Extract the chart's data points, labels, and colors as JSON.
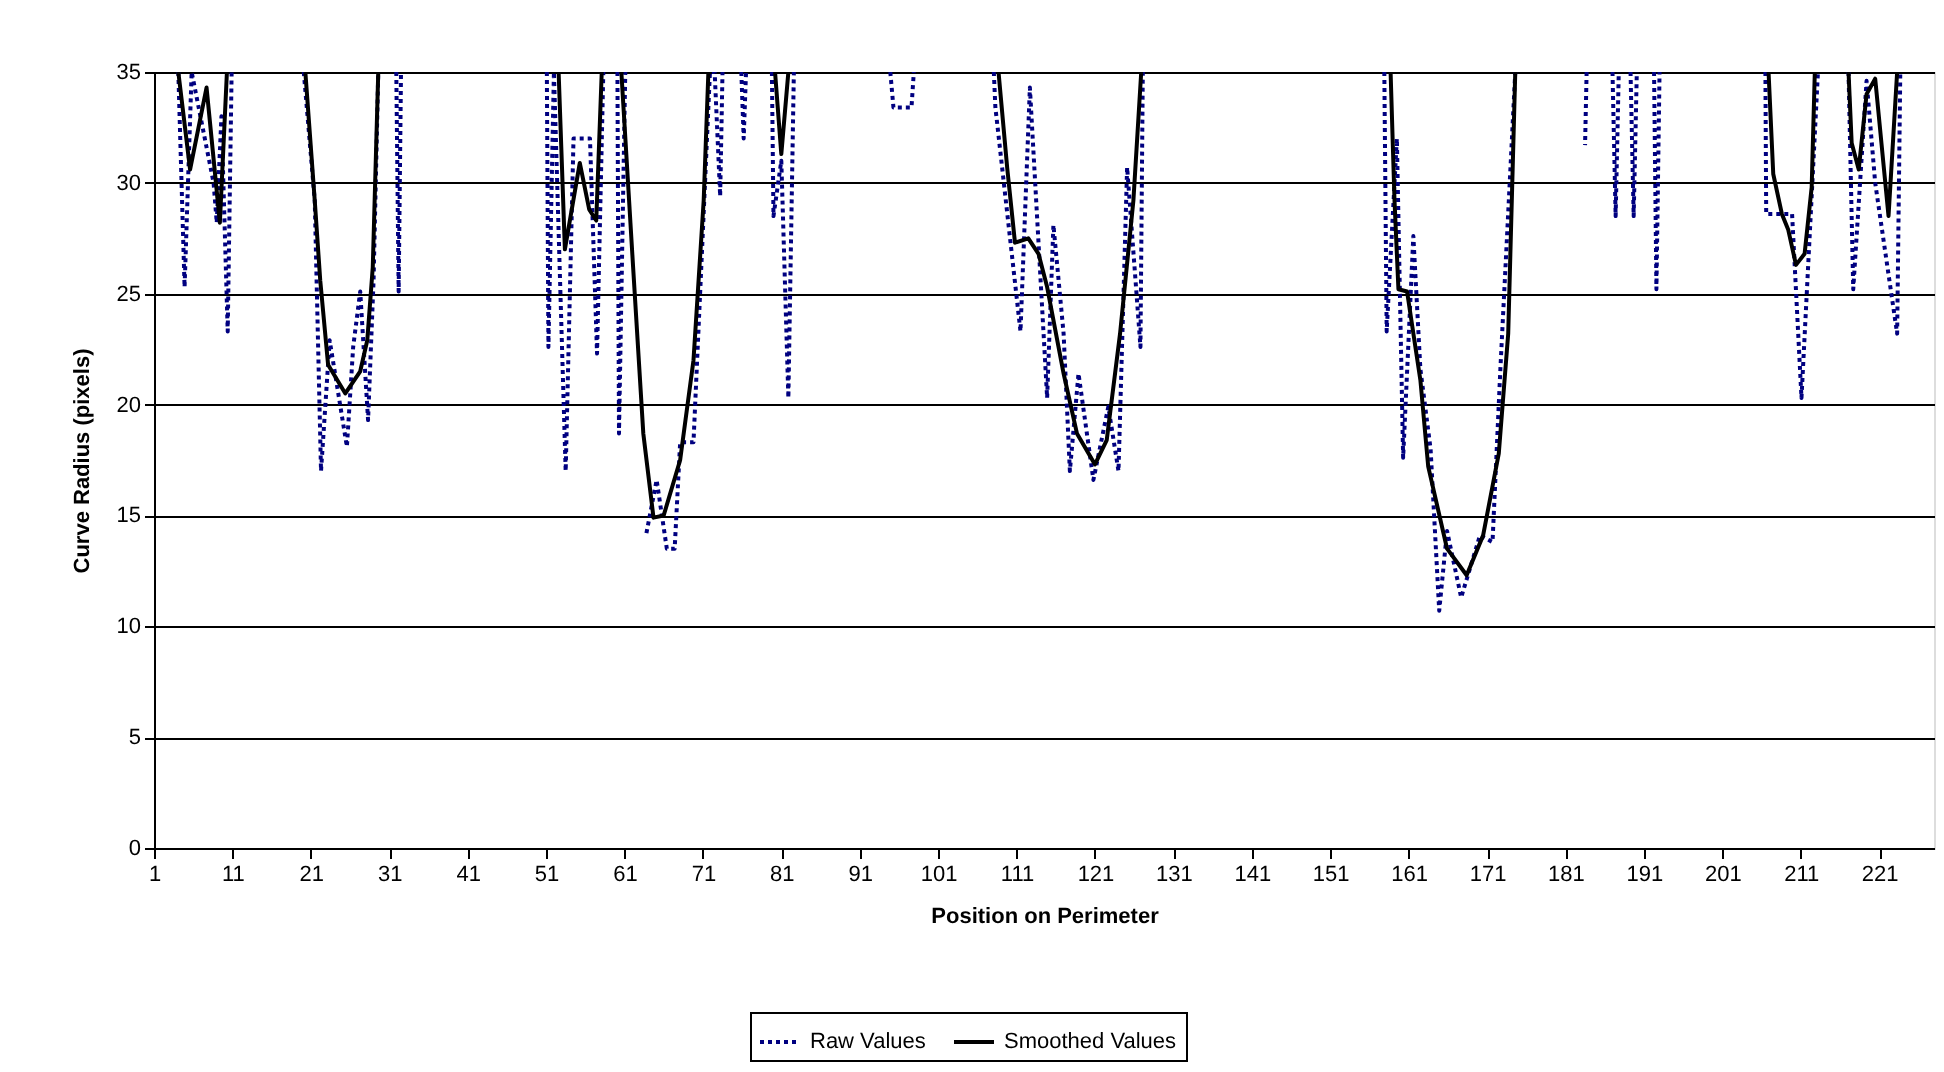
{
  "chart_data": {
    "type": "line",
    "xlabel": "Position on Perimeter",
    "ylabel": "Curve Radius (pixels)",
    "xlim": [
      1,
      228
    ],
    "ylim": [
      0,
      35
    ],
    "xticks": [
      1,
      11,
      21,
      31,
      41,
      51,
      61,
      71,
      81,
      91,
      101,
      111,
      121,
      131,
      141,
      151,
      161,
      171,
      181,
      191,
      201,
      211,
      221
    ],
    "yticks": [
      0,
      5,
      10,
      15,
      20,
      25,
      30,
      35
    ],
    "grid": "y",
    "legend": "bottom",
    "marker": "none",
    "series": [
      {
        "name": "Raw Values",
        "color": "#000080",
        "line_style": "dotted",
        "x": [
          4.1,
          4.9,
          5.8,
          8.6,
          9.0,
          9.6,
          10.4,
          10.9,
          11.2,
          20.1,
          21.5,
          22.3,
          23.4,
          25.6,
          26.4,
          27.3,
          28.3,
          29.0,
          29.6,
          30.5,
          31.9,
          32.2,
          32.5,
          33.0,
          51.1,
          51.3,
          52.0,
          53.5,
          54.5,
          56.6,
          57.5,
          58.3,
          59.0,
          60.1,
          60.3,
          61.1,
          61.8,
          63.8,
          65.1,
          66.4,
          67.4,
          68.1,
          69.8,
          71.9,
          72.5,
          73.2,
          73.5,
          74.5,
          75.9,
          76.2,
          76.5,
          77.5,
          79.8,
          80.0,
          81.0,
          81.9,
          82.6,
          83.5,
          94.9,
          95.3,
          97.6,
          97.9,
          99.0,
          108.1,
          108.3,
          111.5,
          112.7,
          114.9,
          115.7,
          117.0,
          117.8,
          118.9,
          120.8,
          122.7,
          124.0,
          125.1,
          126.8,
          127.1,
          128.0,
          157.9,
          158.2,
          159.5,
          160.3,
          161.6,
          162.5,
          163.8,
          164.9,
          165.9,
          167.7,
          170.1,
          171.7,
          172.7,
          174.6,
          175.5,
          183.7,
          183.5,
          184.0,
          187.0,
          187.4,
          187.8,
          188.5,
          189.3,
          189.7,
          190.1,
          191.0,
          192.3,
          192.6,
          193.0,
          194.0,
          206.5,
          206.6,
          209.9,
          211.1,
          213.2,
          214.0,
          217.1,
          217.7,
          219.4,
          220.5,
          223.3,
          223.7
        ],
        "values": [
          35,
          25.3,
          35,
          30.0,
          28.2,
          33.0,
          23.3,
          35,
          null,
          35,
          29.2,
          17.0,
          22.9,
          18.1,
          22.6,
          25.1,
          19.3,
          25.6,
          35,
          null,
          35,
          25.1,
          35,
          null,
          35,
          22.6,
          35,
          17.0,
          32.0,
          32.0,
          22.3,
          35,
          null,
          35,
          18.7,
          35,
          null,
          14.2,
          16.6,
          13.5,
          13.5,
          18.3,
          18.3,
          35,
          35,
          29.4,
          35,
          null,
          35,
          32.0,
          35,
          null,
          35,
          28.5,
          31.0,
          20.3,
          35,
          null,
          35,
          33.4,
          33.4,
          35,
          null,
          35,
          33.4,
          23.3,
          34.3,
          20.3,
          28.1,
          23.2,
          17.0,
          21.4,
          16.6,
          19.9,
          17.0,
          30.7,
          22.6,
          35,
          null,
          35,
          23.3,
          32.0,
          17.6,
          27.6,
          21.6,
          18.0,
          10.7,
          14.3,
          11.3,
          14.1,
          13.8,
          21.6,
          35,
          null,
          35,
          31.7,
          null,
          35,
          28.5,
          35,
          null,
          35,
          28.5,
          35,
          null,
          35,
          25.2,
          35,
          null,
          35,
          28.6,
          28.6,
          20.3,
          35,
          null,
          35,
          25.2,
          34.6,
          30.0,
          23.2,
          35
        ]
      },
      {
        "name": "Smoothed Values",
        "color": "#000000",
        "line_style": "solid",
        "x": [
          4.1,
          5.6,
          7.7,
          9.4,
          10.3,
          11.0,
          20.3,
          21.5,
          22.2,
          23.2,
          25.4,
          27.3,
          28.2,
          28.9,
          29.6,
          30.5,
          52.6,
          53.4,
          55.3,
          56.5,
          57.4,
          58.1,
          59.0,
          60.6,
          62.1,
          63.4,
          64.7,
          66.0,
          68.1,
          69.8,
          71.1,
          71.7,
          75.0,
          80.2,
          81.0,
          81.9,
          85.0,
          108.7,
          109.8,
          110.8,
          112.5,
          113.8,
          114.9,
          117.0,
          118.7,
          121.0,
          122.5,
          124.2,
          125.9,
          126.9,
          130.0,
          158.7,
          159.2,
          159.7,
          160.8,
          162.5,
          163.5,
          165.9,
          168.4,
          170.5,
          172.5,
          173.7,
          174.6,
          180.0,
          206.9,
          207.5,
          208.6,
          209.4,
          210.4,
          211.5,
          212.4,
          212.8,
          215.0,
          217.1,
          217.5,
          218.4,
          219.4,
          220.5,
          222.2,
          223.3
        ],
        "values": [
          35,
          30.6,
          34.3,
          28.2,
          35,
          null,
          35,
          29.2,
          25.6,
          21.8,
          20.5,
          21.5,
          22.9,
          26.2,
          35,
          null,
          35,
          27.0,
          30.9,
          28.8,
          28.3,
          35,
          null,
          35,
          26.2,
          18.7,
          14.9,
          15.0,
          17.5,
          22.0,
          29.2,
          35,
          null,
          35,
          31.3,
          35,
          null,
          35,
          30.7,
          27.3,
          27.5,
          26.8,
          25.3,
          21.4,
          18.7,
          17.3,
          18.4,
          23.2,
          29.2,
          35,
          null,
          35,
          29.2,
          25.2,
          25.1,
          21.1,
          17.2,
          13.5,
          12.3,
          14.1,
          17.8,
          23.2,
          35,
          null,
          35,
          30.4,
          28.6,
          27.9,
          26.3,
          26.8,
          29.8,
          35,
          null,
          35,
          31.8,
          30.6,
          34.0,
          34.7,
          28.5,
          35
        ]
      }
    ]
  }
}
